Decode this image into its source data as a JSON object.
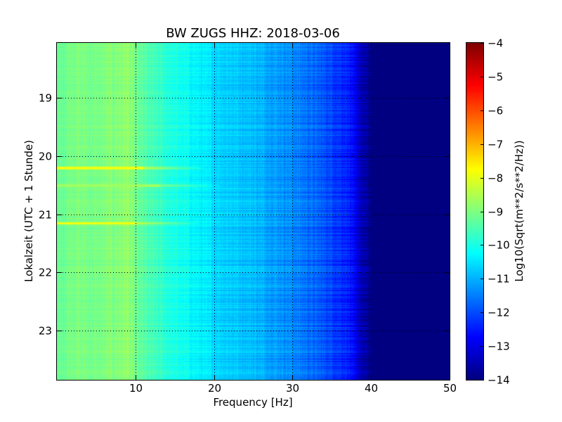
{
  "chart_data": {
    "type": "heatmap",
    "title": "BW ZUGS HHZ: 2018-03-06",
    "xlabel": "Frequency [Hz]",
    "ylabel": "Lokalzeit (UTC + 1 Stunde)",
    "xlim": [
      0,
      50
    ],
    "ylim": [
      23.85,
      18.05
    ],
    "x_ticks": [
      10,
      20,
      30,
      40,
      50
    ],
    "y_ticks": [
      19,
      20,
      21,
      22,
      23
    ],
    "grid": true,
    "colormap": "jet",
    "colorbar": {
      "label": "Log10(Sqrt(m**2/s**2/Hz))",
      "range": [
        -14,
        -4
      ],
      "ticks": [
        -4,
        -5,
        -6,
        -7,
        -8,
        -9,
        -10,
        -11,
        -12,
        -13,
        -14
      ]
    },
    "spectrum_profile": {
      "frequency_hz": [
        0,
        2,
        5,
        8,
        9,
        10,
        12,
        15,
        20,
        25,
        30,
        33,
        35,
        37,
        38,
        39,
        40,
        41,
        45,
        50
      ],
      "level": [
        -9.3,
        -9.0,
        -9.1,
        -8.9,
        -8.8,
        -9.2,
        -9.6,
        -10.0,
        -10.6,
        -10.9,
        -11.4,
        -11.8,
        -12.1,
        -12.4,
        -13.0,
        -13.6,
        -14.0,
        -14.0,
        -14.0,
        -14.0
      ]
    },
    "events": [
      {
        "time": 20.2,
        "level": -7.9,
        "fmax_hz": 11
      },
      {
        "time": 21.15,
        "level": -7.9,
        "fmax_hz": 10
      },
      {
        "time": 20.5,
        "level": -8.7,
        "fmax_hz": 13
      }
    ]
  }
}
